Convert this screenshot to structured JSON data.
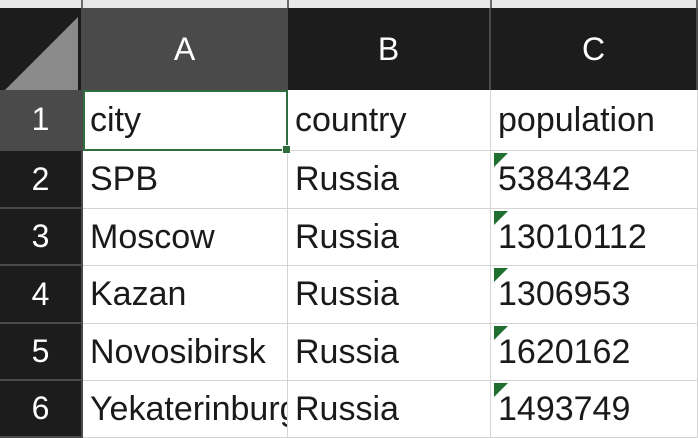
{
  "columns": [
    "A",
    "B",
    "C"
  ],
  "rows": [
    {
      "num": "1",
      "cells": [
        "city",
        "country",
        "population"
      ],
      "flags": [
        false,
        false,
        false
      ]
    },
    {
      "num": "2",
      "cells": [
        "SPB",
        "Russia",
        "5384342"
      ],
      "flags": [
        false,
        false,
        true
      ]
    },
    {
      "num": "3",
      "cells": [
        "Moscow",
        "Russia",
        "13010112"
      ],
      "flags": [
        false,
        false,
        true
      ]
    },
    {
      "num": "4",
      "cells": [
        "Kazan",
        "Russia",
        "1306953"
      ],
      "flags": [
        false,
        false,
        true
      ]
    },
    {
      "num": "5",
      "cells": [
        "Novosibirsk",
        "Russia",
        "1620162"
      ],
      "flags": [
        false,
        false,
        true
      ]
    },
    {
      "num": "6",
      "cells": [
        "Yekaterinburg",
        "Russia",
        "1493749"
      ],
      "flags": [
        false,
        false,
        true
      ]
    }
  ],
  "selection": {
    "active_cell": "A1",
    "selected_column": "A",
    "selected_row": "1"
  },
  "colors": {
    "header_bg": "#1c1c1c",
    "header_selected_bg": "#4a4a4a",
    "selection_border": "#2f6e3f",
    "warning_flag": "#1f6f2e"
  }
}
